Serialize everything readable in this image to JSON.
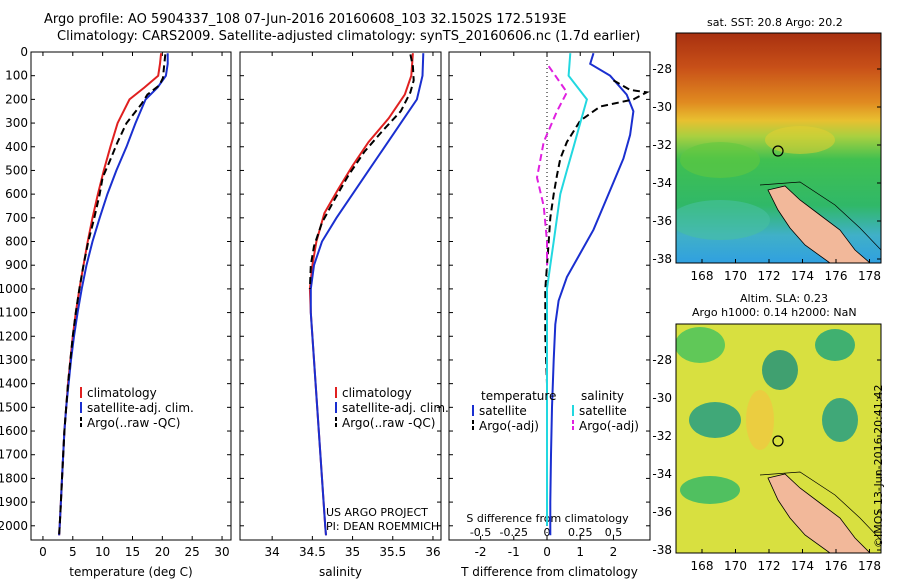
{
  "title": {
    "line1": "Argo profile: AO 5904337_108 07-Jun-2016 20160608_103 32.1502S 172.5193E",
    "line2": "Climatology: CARS2009. Satellite-adjusted climatology: synTS_20160606.nc (1.7d earlier)"
  },
  "side_label": "©IMOS 13-Jun-2016 20:41:42",
  "project": {
    "line1": "US ARGO PROJECT",
    "line2": "PI: DEAN ROEMMICH"
  },
  "colors": {
    "climatology": "#e02020",
    "satellite": "#1a2fd0",
    "argo": "#000000",
    "sat_salinity": "#22d8e0",
    "argo_salinity": "#e020e0"
  },
  "chart_data": [
    {
      "type": "line",
      "xlabel": "temperature (deg C)",
      "ylabel": "",
      "xticks": [
        0,
        5,
        10,
        15,
        20,
        25,
        30
      ],
      "xlim": [
        -2,
        31.5
      ],
      "ylim": [
        2060,
        0
      ],
      "yticks": [
        0,
        100,
        200,
        300,
        400,
        500,
        600,
        700,
        800,
        900,
        1000,
        1100,
        1200,
        1300,
        1400,
        1500,
        1600,
        1700,
        1800,
        1900,
        2000
      ],
      "legend": [
        "climatology",
        "satellite-adj. clim.",
        "Argo(..raw -QC)"
      ],
      "series": [
        {
          "name": "climatology",
          "color": "#e02020",
          "dash": "",
          "points": [
            [
              19.8,
              5
            ],
            [
              19.6,
              50
            ],
            [
              19.3,
              100
            ],
            [
              17,
              150
            ],
            [
              14.5,
              200
            ],
            [
              12.5,
              300
            ],
            [
              11.3,
              400
            ],
            [
              10.2,
              500
            ],
            [
              9.2,
              600
            ],
            [
              8.3,
              700
            ],
            [
              7.5,
              800
            ],
            [
              6.8,
              900
            ],
            [
              6.1,
              1000
            ],
            [
              5.5,
              1100
            ],
            [
              5,
              1200
            ],
            [
              4.6,
              1300
            ],
            [
              4.2,
              1400
            ],
            [
              3.9,
              1500
            ],
            [
              3.6,
              1600
            ],
            [
              3.4,
              1700
            ],
            [
              3.2,
              1800
            ],
            [
              3,
              1900
            ],
            [
              2.8,
              2000
            ],
            [
              2.7,
              2040
            ]
          ]
        },
        {
          "name": "satellite-adj. clim.",
          "color": "#1a2fd0",
          "dash": "",
          "points": [
            [
              20.9,
              5
            ],
            [
              20.9,
              50
            ],
            [
              20.6,
              100
            ],
            [
              19.2,
              150
            ],
            [
              17.2,
              200
            ],
            [
              15.5,
              300
            ],
            [
              14,
              400
            ],
            [
              12.3,
              500
            ],
            [
              10.8,
              600
            ],
            [
              9.5,
              700
            ],
            [
              8.3,
              800
            ],
            [
              7.3,
              900
            ],
            [
              6.5,
              1000
            ],
            [
              5.8,
              1100
            ],
            [
              5.2,
              1200
            ],
            [
              4.7,
              1300
            ],
            [
              4.3,
              1400
            ],
            [
              3.9,
              1500
            ],
            [
              3.6,
              1600
            ],
            [
              3.4,
              1700
            ],
            [
              3.2,
              1800
            ],
            [
              3,
              1900
            ],
            [
              2.8,
              2000
            ],
            [
              2.7,
              2040
            ]
          ]
        },
        {
          "name": "Argo(..raw -QC)",
          "color": "#000000",
          "dash": "7,4",
          "points": [
            [
              20.5,
              10
            ],
            [
              20.3,
              60
            ],
            [
              20.1,
              110
            ],
            [
              19.5,
              140
            ],
            [
              17.5,
              180
            ],
            [
              16.5,
              220
            ],
            [
              14,
              300
            ],
            [
              12.5,
              380
            ],
            [
              11.2,
              460
            ],
            [
              10,
              530
            ],
            [
              9.5,
              600
            ],
            [
              8.6,
              700
            ],
            [
              7.6,
              800
            ],
            [
              6.8,
              900
            ],
            [
              6.1,
              1000
            ],
            [
              5.5,
              1100
            ],
            [
              5,
              1200
            ],
            [
              4.6,
              1300
            ],
            [
              4.2,
              1400
            ],
            [
              3.9,
              1500
            ],
            [
              3.6,
              1600
            ],
            [
              3.4,
              1700
            ],
            [
              3.2,
              1800
            ],
            [
              3,
              1900
            ],
            [
              2.8,
              2000
            ],
            [
              2.7,
              2040
            ]
          ]
        }
      ]
    },
    {
      "type": "line",
      "xlabel": "salinity",
      "ylabel": "",
      "xticks": [
        34,
        34.5,
        35,
        35.5,
        36
      ],
      "xlim": [
        33.6,
        36.1
      ],
      "ylim": [
        2060,
        0
      ],
      "legend": [
        "climatology",
        "satellite-adj. clim.",
        "Argo(..raw -QC)"
      ],
      "series": [
        {
          "name": "climatology",
          "color": "#e02020",
          "dash": "",
          "points": [
            [
              35.75,
              5
            ],
            [
              35.73,
              100
            ],
            [
              35.65,
              180
            ],
            [
              35.45,
              280
            ],
            [
              35.2,
              380
            ],
            [
              35.0,
              480
            ],
            [
              34.82,
              580
            ],
            [
              34.65,
              680
            ],
            [
              34.55,
              800
            ],
            [
              34.5,
              900
            ],
            [
              34.47,
              1000
            ],
            [
              34.48,
              1100
            ],
            [
              34.5,
              1200
            ],
            [
              34.52,
              1300
            ],
            [
              34.54,
              1400
            ],
            [
              34.56,
              1500
            ],
            [
              34.58,
              1600
            ],
            [
              34.6,
              1700
            ],
            [
              34.62,
              1800
            ],
            [
              34.64,
              1900
            ],
            [
              34.66,
              2000
            ],
            [
              34.67,
              2040
            ]
          ]
        },
        {
          "name": "satellite-adj. clim.",
          "color": "#1a2fd0",
          "dash": "",
          "points": [
            [
              35.88,
              5
            ],
            [
              35.87,
              100
            ],
            [
              35.8,
              200
            ],
            [
              35.6,
              300
            ],
            [
              35.4,
              400
            ],
            [
              35.2,
              500
            ],
            [
              35.0,
              600
            ],
            [
              34.8,
              700
            ],
            [
              34.62,
              800
            ],
            [
              34.52,
              900
            ],
            [
              34.48,
              1000
            ],
            [
              34.48,
              1100
            ],
            [
              34.5,
              1200
            ],
            [
              34.52,
              1300
            ],
            [
              34.54,
              1400
            ],
            [
              34.56,
              1500
            ],
            [
              34.58,
              1600
            ],
            [
              34.6,
              1700
            ],
            [
              34.62,
              1800
            ],
            [
              34.64,
              1900
            ],
            [
              34.66,
              2000
            ],
            [
              34.67,
              2040
            ]
          ]
        },
        {
          "name": "Argo(..raw -QC)",
          "color": "#000000",
          "dash": "7,4",
          "points": [
            [
              35.72,
              10
            ],
            [
              35.75,
              60
            ],
            [
              35.76,
              120
            ],
            [
              35.72,
              170
            ],
            [
              35.6,
              250
            ],
            [
              35.38,
              330
            ],
            [
              35.15,
              420
            ],
            [
              34.95,
              520
            ],
            [
              34.78,
              620
            ],
            [
              34.62,
              720
            ],
            [
              34.52,
              820
            ],
            [
              34.48,
              900
            ],
            [
              34.47,
              1000
            ]
          ]
        }
      ]
    },
    {
      "type": "line",
      "xlabel": "T difference from climatology",
      "xlabel2": "S difference from climatology",
      "ylabel": "",
      "xticks": [
        -2,
        -1,
        0,
        1,
        2
      ],
      "xticks_top": [
        "-0.5",
        "-0.25",
        "0",
        "0.25",
        "0.5"
      ],
      "xlim": [
        -2.95,
        3.1
      ],
      "ylim": [
        2060,
        0
      ],
      "legend_titles": [
        "temperature",
        "salinity"
      ],
      "legend": [
        "satellite",
        "Argo(-adj)",
        "satellite",
        "Argo(-adj)"
      ],
      "series": [
        {
          "name": "satellite",
          "color": "#1a2fd0",
          "dash": "",
          "points": [
            [
              1.4,
              5
            ],
            [
              1.3,
              50
            ],
            [
              1.9,
              100
            ],
            [
              2.4,
              180
            ],
            [
              2.6,
              250
            ],
            [
              2.5,
              350
            ],
            [
              2.3,
              450
            ],
            [
              2.0,
              550
            ],
            [
              1.7,
              650
            ],
            [
              1.4,
              750
            ],
            [
              1.0,
              850
            ],
            [
              0.6,
              950
            ],
            [
              0.35,
              1050
            ],
            [
              0.25,
              1150
            ],
            [
              0.2,
              1300
            ],
            [
              0.15,
              1500
            ],
            [
              0.12,
              1700
            ],
            [
              0.1,
              1900
            ],
            [
              0.1,
              2040
            ]
          ]
        },
        {
          "name": "Argo(-adj)",
          "color": "#000000",
          "dash": "7,4",
          "points": [
            [
              2.0,
              120
            ],
            [
              2.5,
              160
            ],
            [
              3.0,
              170
            ],
            [
              2.6,
              200
            ],
            [
              1.6,
              230
            ],
            [
              1.0,
              290
            ],
            [
              0.6,
              380
            ],
            [
              0.4,
              450
            ],
            [
              0.3,
              520
            ],
            [
              0.2,
              600
            ],
            [
              0.1,
              700
            ],
            [
              0.05,
              800
            ],
            [
              0.0,
              900
            ],
            [
              -0.05,
              1000
            ],
            [
              -0.05,
              1200
            ],
            [
              0.0,
              1400
            ],
            [
              0.0,
              1600
            ],
            [
              0.0,
              1800
            ],
            [
              0.0,
              2000
            ]
          ]
        },
        {
          "name": "satellite",
          "color": "#22d8e0",
          "dash": "",
          "points": [
            [
              0.7,
              5
            ],
            [
              0.65,
              100
            ],
            [
              1.2,
              200
            ],
            [
              1.0,
              300
            ],
            [
              0.8,
              400
            ],
            [
              0.6,
              500
            ],
            [
              0.4,
              600
            ],
            [
              0.3,
              700
            ],
            [
              0.2,
              800
            ],
            [
              0.1,
              900
            ],
            [
              0.0,
              1000
            ],
            [
              0.0,
              1200
            ],
            [
              0.0,
              1400
            ],
            [
              0.0,
              1600
            ],
            [
              0.0,
              1800
            ],
            [
              0.0,
              2000
            ]
          ]
        },
        {
          "name": "Argo(-adj)",
          "color": "#e020e0",
          "dash": "7,4",
          "points": [
            [
              0.05,
              60
            ],
            [
              0.3,
              110
            ],
            [
              0.6,
              170
            ],
            [
              0.3,
              250
            ],
            [
              -0.1,
              380
            ],
            [
              -0.3,
              530
            ],
            [
              -0.1,
              650
            ],
            [
              0.0,
              800
            ],
            [
              0.0,
              900
            ]
          ]
        }
      ]
    }
  ],
  "maps": [
    {
      "title": "sat. SST: 20.8 Argo: 20.2",
      "xticks": [
        "168",
        "170",
        "172",
        "174",
        "176",
        "178"
      ],
      "yticks": [
        "-28",
        "-30",
        "-32",
        "-34",
        "-36",
        "-38"
      ]
    },
    {
      "title_line1": "Altim. SLA: 0.23",
      "title_line2": "Argo h1000: 0.14 h2000: NaN",
      "xticks": [
        "168",
        "170",
        "172",
        "174",
        "176",
        "178"
      ],
      "yticks": [
        "-28",
        "-30",
        "-32",
        "-34",
        "-36",
        "-38"
      ]
    }
  ]
}
